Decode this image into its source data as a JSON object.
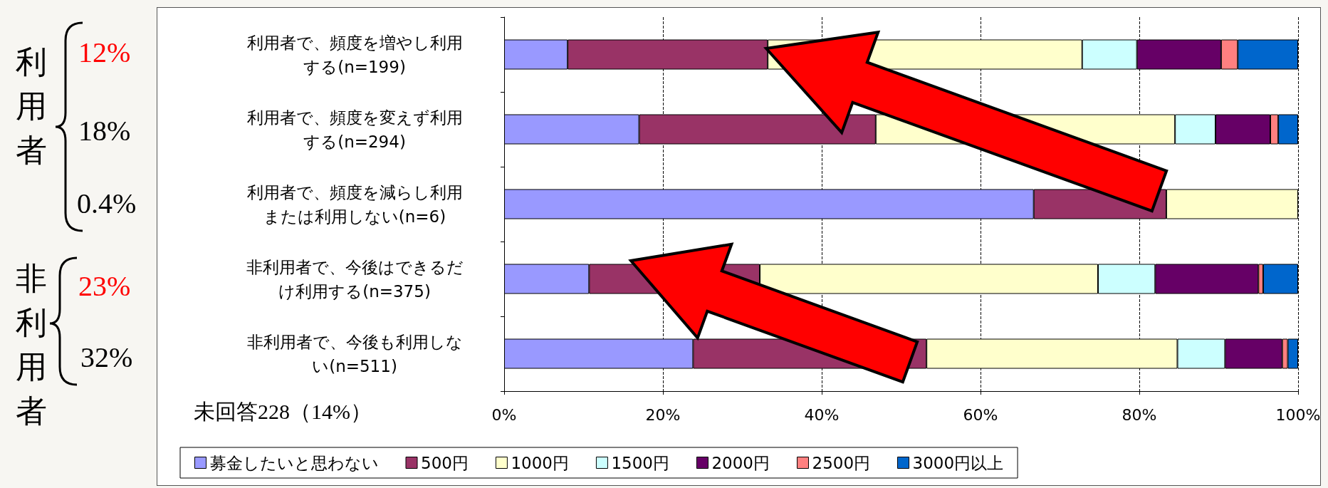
{
  "chart_data": {
    "type": "bar",
    "orientation": "horizontal",
    "stacked": true,
    "categories": [
      "利用者で、頻度を増やし利用する(n=199)",
      "利用者で、頻度を変えず利用する(n=294)",
      "利用者で、頻度を減らし利用または利用しない(n=6)",
      "非利用者で、今後はできるだけ利用する(n=375)",
      "非利用者で、今後も利用しない(n=511)"
    ],
    "series": [
      {
        "name": "募金したいと思わない",
        "color": "#9999ff",
        "values": [
          8.0,
          17.0,
          66.7,
          10.7,
          23.8
        ]
      },
      {
        "name": "500円",
        "color": "#993366",
        "values": [
          25.2,
          29.8,
          16.7,
          21.5,
          29.4
        ]
      },
      {
        "name": "1000円",
        "color": "#ffffcc",
        "values": [
          39.6,
          37.7,
          16.6,
          42.6,
          31.6
        ]
      },
      {
        "name": "1500円",
        "color": "#ccffff",
        "values": [
          6.9,
          5.1,
          0,
          7.2,
          6.0
        ]
      },
      {
        "name": "2000円",
        "color": "#660066",
        "values": [
          10.6,
          6.9,
          0,
          13.0,
          7.2
        ]
      },
      {
        "name": "2500円",
        "color": "#ff8080",
        "values": [
          2.1,
          1.0,
          0,
          0.6,
          0.7
        ]
      },
      {
        "name": "3000円以上",
        "color": "#0066cc",
        "values": [
          7.6,
          2.5,
          0,
          4.4,
          1.3
        ]
      }
    ],
    "xlim": [
      0,
      100
    ],
    "xticks": [
      {
        "value": 0,
        "label": "0%"
      },
      {
        "value": 20,
        "label": "20%"
      },
      {
        "value": 40,
        "label": "40%"
      },
      {
        "value": 60,
        "label": "60%"
      },
      {
        "value": 80,
        "label": "80%"
      },
      {
        "value": 100,
        "label": "100%"
      }
    ],
    "grid": "x",
    "legend": "bottom",
    "annotations": [
      "利用者",
      "12%",
      "18%",
      "0.4%",
      "非利用者",
      "23%",
      "32%",
      "未回答228（14%）"
    ]
  }
}
